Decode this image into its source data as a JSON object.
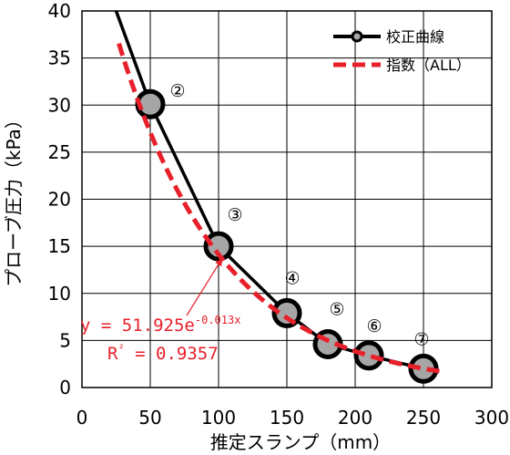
{
  "chart_data": {
    "type": "line",
    "xlabel": "推定スランプ（mm）",
    "ylabel": "プローブ圧力（kPa）",
    "xlim": [
      0,
      300
    ],
    "ylim": [
      0,
      40
    ],
    "xticks": [
      "0",
      "50",
      "100",
      "150",
      "200",
      "250",
      "300"
    ],
    "yticks": [
      "0",
      "5",
      "10",
      "15",
      "20",
      "25",
      "30",
      "35",
      "40"
    ],
    "grid": true,
    "legend_position": "top-right",
    "series": [
      {
        "name": "校正曲線",
        "color": "#000000",
        "marker_color": "#a6a6a6",
        "x": [
          50,
          100,
          150,
          180,
          210,
          250
        ],
        "y": [
          30.1,
          15.0,
          7.9,
          4.6,
          3.4,
          2.0
        ],
        "extension_start": {
          "x": 25,
          "y": 40
        },
        "point_labels": [
          "②",
          "③",
          "④",
          "⑤",
          "⑥",
          "⑦"
        ]
      },
      {
        "name": "指数（ALL）",
        "color": "#e8202a",
        "fit": {
          "a": 51.925,
          "b": -0.013
        },
        "x_range": [
          27,
          265
        ]
      }
    ],
    "annotation": {
      "equation_main": "y = 51.925e",
      "equation_exponent": "-0.013x",
      "r2_label": "R",
      "r2_sup": "²",
      "r2_value": " = 0.9357",
      "color": "#e8202a",
      "arrow_target": {
        "x": 103,
        "y": 13.8
      }
    }
  }
}
